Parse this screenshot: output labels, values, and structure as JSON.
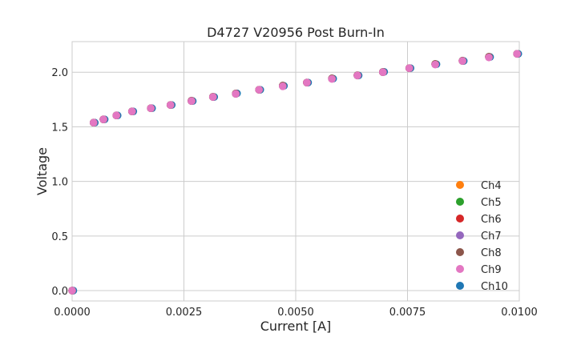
{
  "chart_data": {
    "type": "scatter",
    "title": "D4727 V20956 Post Burn-In",
    "xlabel": "Current [A]",
    "ylabel": "Voltage",
    "xlim": [
      0,
      0.01
    ],
    "ylim": [
      -0.095,
      2.28
    ],
    "xticks": [
      "0.0000",
      "0.0025",
      "0.0050",
      "0.0075",
      "0.0100"
    ],
    "xtick_values": [
      0,
      0.0025,
      0.005,
      0.0075,
      0.01
    ],
    "yticks": [
      "0.0",
      "0.5",
      "1.0",
      "1.5",
      "2.0"
    ],
    "ytick_values": [
      0,
      0.5,
      1.0,
      1.5,
      2.0
    ],
    "grid": true,
    "legend_position": "lower-right",
    "x": [
      0,
      0.00048,
      0.0007,
      0.00099,
      0.00134,
      0.00176,
      0.0022,
      0.00267,
      0.00315,
      0.00366,
      0.00418,
      0.00471,
      0.00525,
      0.00581,
      0.00638,
      0.00695,
      0.00754,
      0.00812,
      0.00873,
      0.00932,
      0.00995
    ],
    "series": [
      {
        "name": "Ch4",
        "color": "#ff7f0e",
        "y": [
          0,
          1.538,
          1.568,
          1.604,
          1.641,
          1.67,
          1.7,
          1.736,
          1.773,
          1.802,
          1.839,
          1.875,
          1.905,
          1.941,
          1.97,
          2.0,
          2.037,
          2.073,
          2.103,
          2.139,
          2.168
        ]
      },
      {
        "name": "Ch5",
        "color": "#2ca02c",
        "y": [
          0,
          1.538,
          1.568,
          1.604,
          1.641,
          1.67,
          1.7,
          1.736,
          1.773,
          1.802,
          1.839,
          1.875,
          1.905,
          1.941,
          1.97,
          2.0,
          2.037,
          2.073,
          2.103,
          2.139,
          2.168
        ]
      },
      {
        "name": "Ch6",
        "color": "#d62728",
        "y": [
          0,
          1.538,
          1.568,
          1.604,
          1.641,
          1.67,
          1.7,
          1.736,
          1.773,
          1.802,
          1.839,
          1.875,
          1.905,
          1.941,
          1.97,
          2.0,
          2.037,
          2.073,
          2.103,
          2.139,
          2.168
        ]
      },
      {
        "name": "Ch7",
        "color": "#9467bd",
        "y": [
          0,
          1.538,
          1.568,
          1.604,
          1.641,
          1.67,
          1.7,
          1.736,
          1.773,
          1.802,
          1.839,
          1.875,
          1.905,
          1.941,
          1.97,
          2.0,
          2.037,
          2.073,
          2.103,
          2.139,
          2.168
        ]
      },
      {
        "name": "Ch8",
        "color": "#8c564b",
        "y": [
          0,
          1.538,
          1.568,
          1.604,
          1.641,
          1.67,
          1.7,
          1.74,
          1.776,
          1.806,
          1.839,
          1.878,
          1.905,
          1.944,
          1.973,
          2.003,
          2.037,
          2.076,
          2.106,
          2.142,
          2.168
        ]
      },
      {
        "name": "Ch9",
        "color": "#e377c2",
        "y": [
          0,
          1.538,
          1.568,
          1.604,
          1.641,
          1.67,
          1.7,
          1.736,
          1.773,
          1.802,
          1.839,
          1.871,
          1.905,
          1.938,
          1.97,
          2.0,
          2.037,
          2.07,
          2.103,
          2.135,
          2.168
        ]
      },
      {
        "name": "Ch10",
        "color": "#1f77b4",
        "y": [
          0,
          1.538,
          1.568,
          1.604,
          1.641,
          1.67,
          1.7,
          1.736,
          1.773,
          1.806,
          1.839,
          1.875,
          1.905,
          1.941,
          1.97,
          2.003,
          2.037,
          2.073,
          2.103,
          2.139,
          2.168
        ]
      }
    ]
  }
}
